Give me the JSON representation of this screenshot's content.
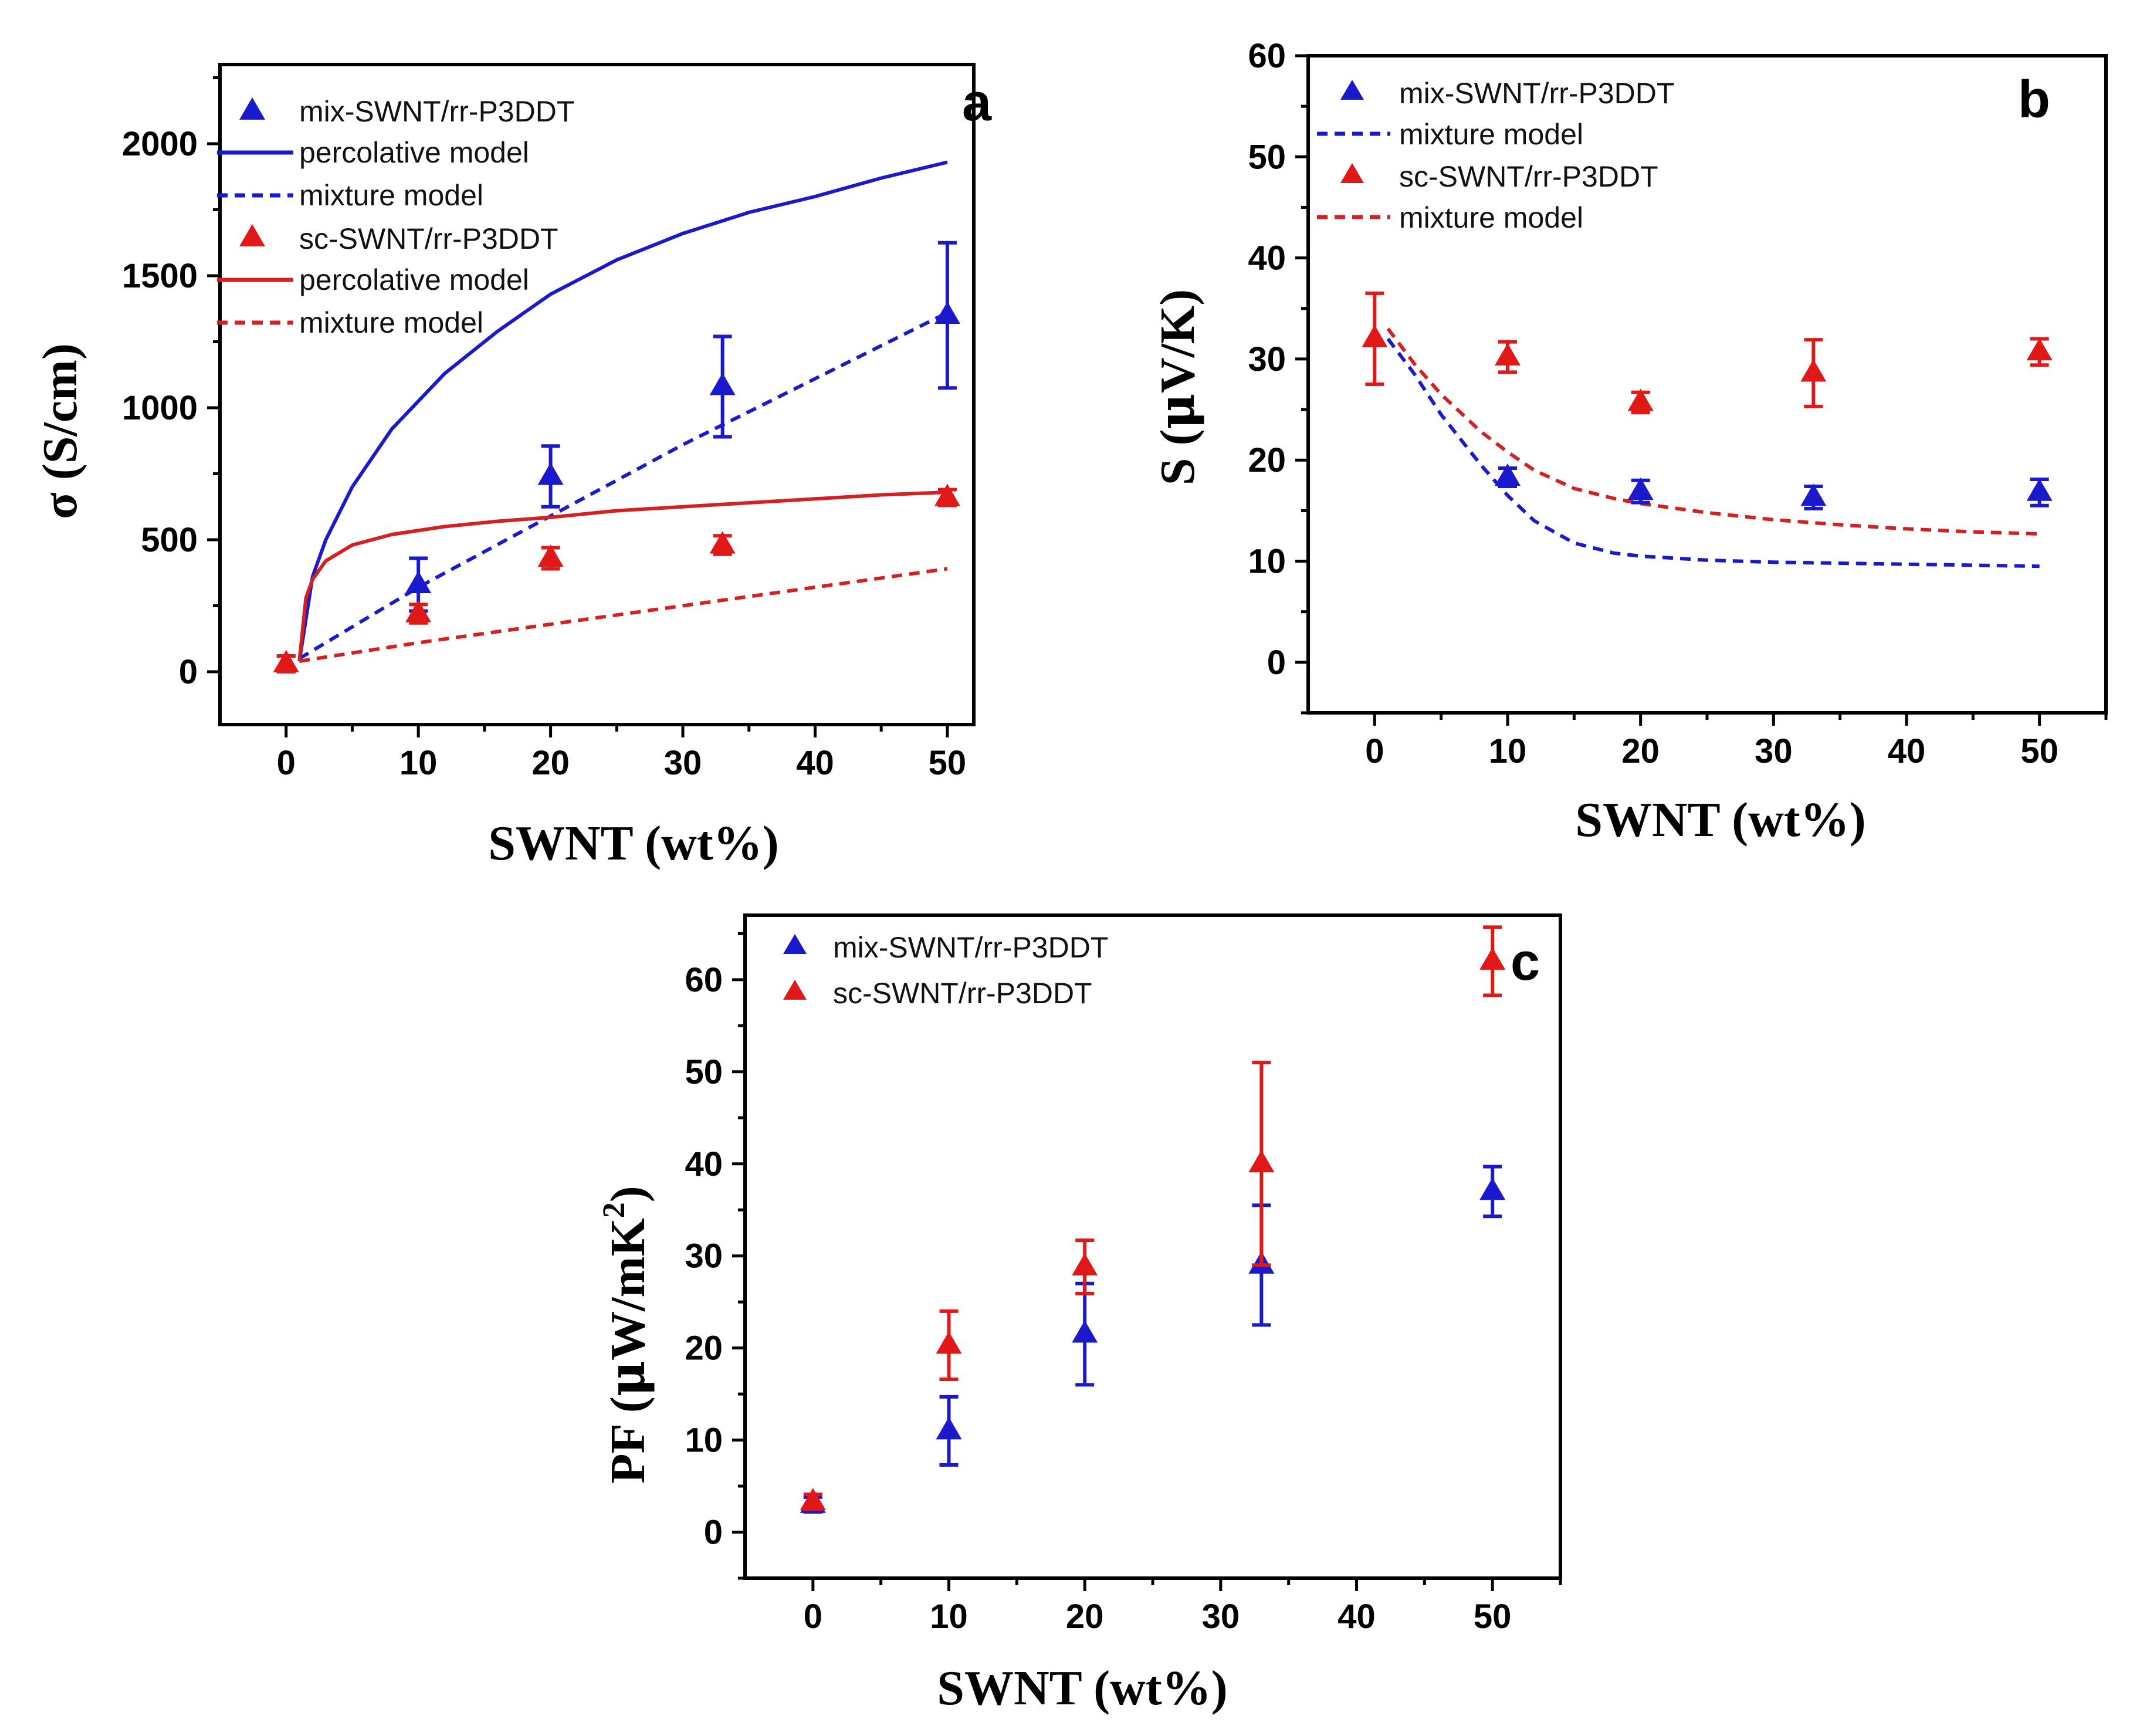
{
  "chart_data": [
    {
      "type": "scatter",
      "panel": "a",
      "xlabel": "SWNT (wt%)",
      "ylabel": "σ (S/cm)",
      "xlim": [
        -5,
        52
      ],
      "ylim": [
        -200,
        2300
      ],
      "xticks": [
        0,
        10,
        20,
        30,
        40,
        50
      ],
      "yticks": [
        0,
        500,
        1000,
        1500,
        2000
      ],
      "grid": false,
      "legend_position": "top-left",
      "series": [
        {
          "name": "mix-SWNT/rr-P3DDT",
          "kind": "points",
          "color": "#1a1acc",
          "x": [
            0,
            10,
            20,
            33,
            50
          ],
          "y": [
            30,
            330,
            740,
            1080,
            1350
          ],
          "err": [
            30,
            100,
            115,
            190,
            275
          ]
        },
        {
          "name": "percolative model",
          "kind": "line",
          "style": "solid",
          "color": "#1a1acc",
          "x": [
            1,
            2,
            3,
            5,
            8,
            12,
            16,
            20,
            25,
            30,
            35,
            40,
            45,
            50
          ],
          "y": [
            40,
            360,
            500,
            700,
            920,
            1130,
            1290,
            1430,
            1560,
            1660,
            1740,
            1800,
            1870,
            1930
          ]
        },
        {
          "name": "mixture model",
          "kind": "line",
          "style": "dashed",
          "color": "#1a1acc",
          "x": [
            1,
            10,
            20,
            30,
            40,
            50
          ],
          "y": [
            50,
            320,
            590,
            860,
            1110,
            1360
          ]
        },
        {
          "name": "sc-SWNT/rr-P3DDT",
          "kind": "points",
          "color": "#e01818",
          "x": [
            0,
            10,
            20,
            33,
            50
          ],
          "y": [
            30,
            220,
            430,
            480,
            660
          ],
          "err": [
            30,
            35,
            40,
            35,
            30
          ]
        },
        {
          "name": "percolative model",
          "kind": "line",
          "style": "solid",
          "color": "#d42020",
          "x": [
            1,
            1.5,
            2,
            3,
            5,
            8,
            12,
            16,
            20,
            25,
            30,
            35,
            40,
            45,
            50
          ],
          "y": [
            40,
            280,
            350,
            420,
            480,
            520,
            550,
            570,
            585,
            610,
            625,
            640,
            655,
            670,
            680
          ]
        },
        {
          "name": "mixture model",
          "kind": "line",
          "style": "dashed",
          "color": "#d42020",
          "x": [
            1,
            10,
            20,
            30,
            40,
            50
          ],
          "y": [
            40,
            110,
            180,
            250,
            320,
            390
          ]
        }
      ]
    },
    {
      "type": "scatter",
      "panel": "b",
      "xlabel": "SWNT (wt%)",
      "ylabel": "S (μV/K)",
      "xlim": [
        -5,
        55
      ],
      "ylim": [
        -5,
        60
      ],
      "xticks": [
        0,
        10,
        20,
        30,
        40,
        50
      ],
      "yticks": [
        0,
        10,
        20,
        30,
        40,
        50,
        60
      ],
      "grid": false,
      "legend_position": "top-left",
      "series": [
        {
          "name": "mix-SWNT/rr-P3DDT",
          "kind": "points",
          "color": "#1a1acc",
          "x": [
            10,
            20,
            33,
            50
          ],
          "y": [
            18.3,
            16.9,
            16.3,
            16.8
          ],
          "err": [
            0.9,
            1.1,
            1.1,
            1.3
          ]
        },
        {
          "name": "mixture model",
          "kind": "line",
          "style": "dashed",
          "color": "#1a1acc",
          "x": [
            1,
            3,
            5,
            8,
            10,
            12,
            15,
            18,
            20,
            25,
            30,
            35,
            40,
            45,
            50
          ],
          "y": [
            32,
            28.5,
            24.5,
            19.5,
            16.5,
            14,
            11.8,
            10.8,
            10.5,
            10.1,
            9.9,
            9.8,
            9.7,
            9.6,
            9.5
          ]
        },
        {
          "name": "sc-SWNT/rr-P3DDT",
          "kind": "points",
          "color": "#e01818",
          "x": [
            0,
            10,
            20,
            33,
            50
          ],
          "y": [
            32,
            30.2,
            25.7,
            28.6,
            30.7
          ],
          "err": [
            4.5,
            1.5,
            1.0,
            3.3,
            1.3
          ]
        },
        {
          "name": "mixture model",
          "kind": "line",
          "style": "dashed",
          "color": "#d42020",
          "x": [
            1,
            3,
            5,
            8,
            10,
            12,
            15,
            18,
            20,
            25,
            30,
            35,
            40,
            45,
            50
          ],
          "y": [
            33,
            29.5,
            26.5,
            22.8,
            20.8,
            19,
            17.2,
            16.2,
            15.7,
            14.8,
            14.1,
            13.6,
            13.2,
            12.9,
            12.7
          ]
        }
      ]
    },
    {
      "type": "scatter",
      "panel": "c",
      "xlabel": "SWNT (wt%)",
      "ylabel": "PF (μW/mK²)",
      "xlim": [
        -5,
        55
      ],
      "ylim": [
        -5,
        67
      ],
      "xticks": [
        0,
        10,
        20,
        30,
        40,
        50
      ],
      "yticks": [
        0,
        10,
        20,
        30,
        40,
        50,
        60
      ],
      "grid": false,
      "legend_position": "top-left",
      "series": [
        {
          "name": "mix-SWNT/rr-P3DDT",
          "kind": "points",
          "color": "#1a1acc",
          "x": [
            0,
            10,
            20,
            33,
            50
          ],
          "y": [
            3,
            11,
            21.5,
            29,
            37
          ],
          "err": [
            0.8,
            3.7,
            5.5,
            6.5,
            2.7
          ]
        },
        {
          "name": "sc-SWNT/rr-P3DDT",
          "kind": "points",
          "color": "#e01818",
          "x": [
            0,
            10,
            20,
            33,
            50
          ],
          "y": [
            3.3,
            20.3,
            28.8,
            40,
            62
          ],
          "err": [
            0.8,
            3.7,
            2.9,
            11,
            3.7
          ]
        }
      ]
    }
  ],
  "panels": {
    "a": {
      "letter": "a",
      "ylabel_symbol": "σ",
      "ylabel_unit": " (S/cm)",
      "legend": [
        "mix-SWNT/rr-P3DDT",
        "percolative model",
        "mixture model",
        "sc-SWNT/rr-P3DDT",
        "percolative model",
        "mixture model"
      ]
    },
    "b": {
      "letter": "b",
      "ylabel_prefix": "S (",
      "ylabel_mu": "μ",
      "ylabel_suffix": "V/K)",
      "legend": [
        "mix-SWNT/rr-P3DDT",
        "mixture model",
        "sc-SWNT/rr-P3DDT",
        "mixture model"
      ]
    },
    "c": {
      "letter": "c",
      "ylabel_prefix": "PF (",
      "ylabel_mu": "μ",
      "ylabel_suffix": "W/mK",
      "ylabel_sup": "2",
      "ylabel_close": ")",
      "legend": [
        "mix-SWNT/rr-P3DDT",
        "sc-SWNT/rr-P3DDT"
      ]
    }
  }
}
